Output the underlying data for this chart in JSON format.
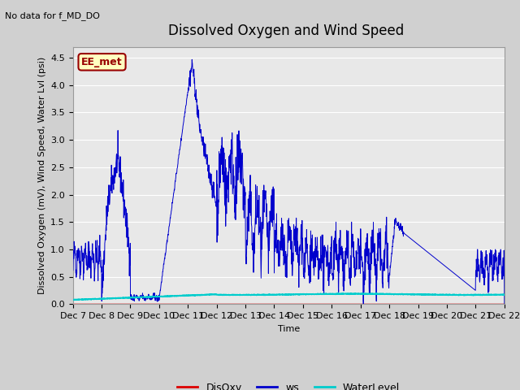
{
  "title": "Dissolved Oxygen and Wind Speed",
  "ylabel": "Dissolved Oxygen (mV), Wind Speed, Water Lvl (psi)",
  "xlabel": "Time",
  "top_left_text": "No data for f_MD_DO",
  "annotation_box": "EE_met",
  "ylim": [
    0.0,
    4.7
  ],
  "yticks": [
    0.0,
    0.5,
    1.0,
    1.5,
    2.0,
    2.5,
    3.0,
    3.5,
    4.0,
    4.5
  ],
  "xtick_labels": [
    "Dec 7",
    "Dec 8",
    "Dec 9",
    "Dec 10",
    "Dec 11",
    "Dec 12",
    "Dec 13",
    "Dec 14",
    "Dec 15",
    "Dec 16",
    "Dec 17",
    "Dec 18",
    "Dec 19",
    "Dec 20",
    "Dec 21",
    "Dec 22"
  ],
  "legend_entries": [
    "DisOxy",
    "ws",
    "WaterLevel"
  ],
  "ws_color": "#0000cc",
  "do_color": "#dd0000",
  "wl_color": "#00cccc",
  "grid_color": "#ffffff",
  "plot_bg_color": "#e8e8e8",
  "fig_bg_color": "#c8c8c8",
  "title_fontsize": 12,
  "label_fontsize": 8,
  "tick_fontsize": 8
}
